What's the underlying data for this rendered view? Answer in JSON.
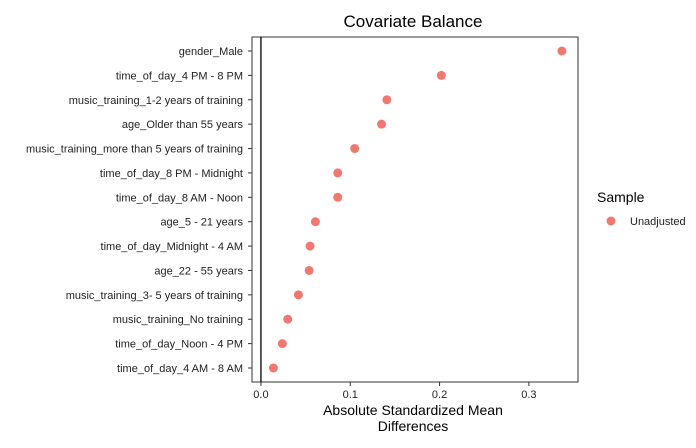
{
  "chart_data": {
    "type": "scatter",
    "title": "Covariate Balance",
    "xlabel": [
      "Absolute Standardized Mean",
      "Differences"
    ],
    "ylabel": "",
    "xlim": [
      -0.01,
      0.355
    ],
    "xticks": [
      0.0,
      0.1,
      0.2,
      0.3
    ],
    "xtick_labels": [
      "0.0",
      "0.1",
      "0.2",
      "0.3"
    ],
    "reference_line": 0,
    "grid": false,
    "legend": {
      "title": "Sample",
      "position": "right"
    },
    "categories": [
      "gender_Male",
      "time_of_day_4 PM - 8 PM",
      "music_training_1-2 years of training",
      "age_Older than 55 years",
      "music_training_more than 5 years of training",
      "time_of_day_8 PM - Midnight",
      "time_of_day_8 AM - Noon",
      "age_5 - 21 years",
      "time_of_day_Midnight - 4 AM",
      "age_22 - 55 years",
      "music_training_3- 5 years of training",
      "music_training_No training",
      "time_of_day_Noon - 4 PM",
      "time_of_day_4 AM - 8 AM"
    ],
    "series": [
      {
        "name": "Unadjusted",
        "color": "#f07870",
        "values": [
          0.337,
          0.202,
          0.141,
          0.135,
          0.105,
          0.086,
          0.086,
          0.061,
          0.055,
          0.054,
          0.042,
          0.03,
          0.024,
          0.014
        ]
      }
    ]
  }
}
